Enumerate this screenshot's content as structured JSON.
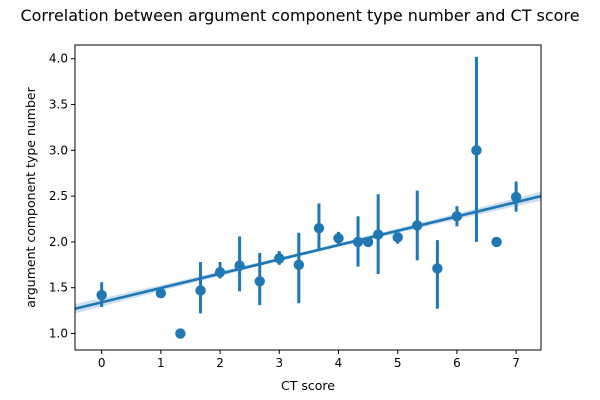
{
  "chart_data": {
    "type": "scatter",
    "title": "Correlation between argument component type number and CT score",
    "xlabel": "CT score",
    "ylabel": "argument component type number",
    "xlim": [
      -0.45,
      7.42
    ],
    "ylim": [
      0.82,
      4.15
    ],
    "xticks": [
      0,
      1,
      2,
      3,
      4,
      5,
      6,
      7
    ],
    "yticks": [
      1.0,
      1.5,
      2.0,
      2.5,
      3.0,
      3.5,
      4.0
    ],
    "grid": false,
    "colors": {
      "marker": "#1f77b4",
      "band": "#a9c9e6"
    },
    "regression": {
      "x": [
        -0.45,
        7.42
      ],
      "y": [
        1.27,
        2.5
      ],
      "ci_halfwidth_ends": 0.05,
      "ci_halfwidth_mid": 0.02
    },
    "points": [
      {
        "x": 0.0,
        "y": 1.42,
        "err": [
          1.29,
          1.56
        ]
      },
      {
        "x": 1.0,
        "y": 1.44,
        "err": [
          1.41,
          1.47
        ]
      },
      {
        "x": 1.33,
        "y": 1.0,
        "err": null
      },
      {
        "x": 1.67,
        "y": 1.47,
        "err": [
          1.22,
          1.78
        ]
      },
      {
        "x": 2.0,
        "y": 1.67,
        "err": [
          1.6,
          1.78
        ]
      },
      {
        "x": 2.33,
        "y": 1.74,
        "err": [
          1.46,
          2.06
        ]
      },
      {
        "x": 2.67,
        "y": 1.57,
        "err": [
          1.31,
          1.88
        ]
      },
      {
        "x": 3.0,
        "y": 1.82,
        "err": [
          1.75,
          1.9
        ]
      },
      {
        "x": 3.33,
        "y": 1.75,
        "err": [
          1.33,
          2.1
        ]
      },
      {
        "x": 3.67,
        "y": 2.15,
        "err": [
          1.91,
          2.42
        ]
      },
      {
        "x": 4.0,
        "y": 2.04,
        "err": [
          1.97,
          2.11
        ]
      },
      {
        "x": 4.33,
        "y": 2.0,
        "err": [
          1.73,
          2.28
        ]
      },
      {
        "x": 4.5,
        "y": 2.0,
        "err": null
      },
      {
        "x": 4.67,
        "y": 2.08,
        "err": [
          1.65,
          2.52
        ]
      },
      {
        "x": 5.0,
        "y": 2.05,
        "err": [
          1.98,
          2.1
        ]
      },
      {
        "x": 5.33,
        "y": 2.18,
        "err": [
          1.8,
          2.56
        ]
      },
      {
        "x": 5.67,
        "y": 1.71,
        "err": [
          1.27,
          2.02
        ]
      },
      {
        "x": 6.0,
        "y": 2.28,
        "err": [
          2.17,
          2.39
        ]
      },
      {
        "x": 6.33,
        "y": 3.0,
        "err": [
          2.0,
          4.02
        ]
      },
      {
        "x": 6.67,
        "y": 2.0,
        "err": null
      },
      {
        "x": 7.0,
        "y": 2.49,
        "err": [
          2.33,
          2.66
        ]
      }
    ]
  }
}
